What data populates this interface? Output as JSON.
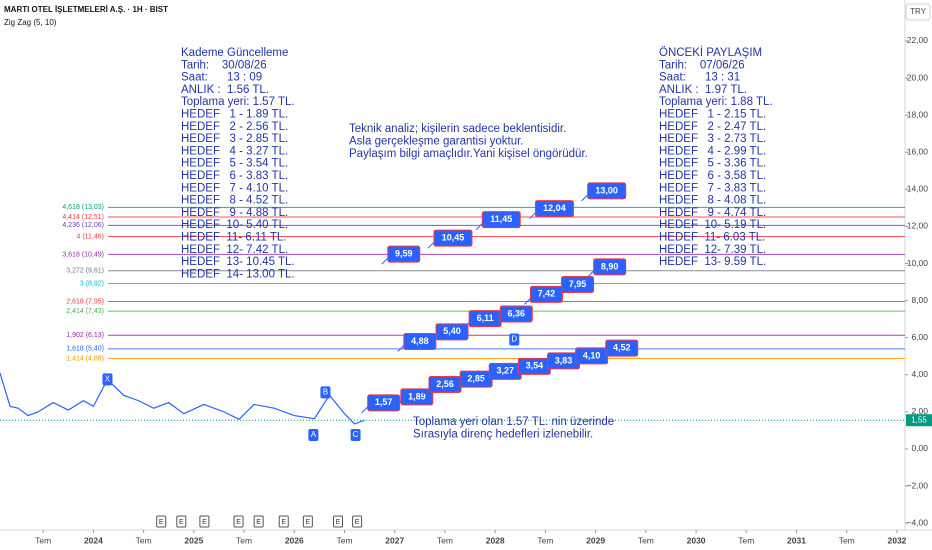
{
  "header": {
    "symbol": "MARTI OTEL İŞLETMELERİ A.Ş. · 1H · BIST",
    "indicator": "Zig Zag (5, 10)",
    "currency": "TRY"
  },
  "chart_data": {
    "type": "line",
    "xlim": [
      2023.07,
      2032.08
    ],
    "ylim": [
      -4.37,
      24.21
    ],
    "xticks": [
      {
        "value": 2023.5,
        "label": "Tem"
      },
      2024,
      {
        "value": 2024.5,
        "label": "Tem"
      },
      2025,
      {
        "value": 2025.5,
        "label": "Tem"
      },
      2026,
      {
        "value": 2026.5,
        "label": "Tem"
      },
      2027,
      {
        "value": 2027.5,
        "label": "Tem"
      },
      2028,
      {
        "value": 2028.5,
        "label": "Tem"
      },
      2029,
      {
        "value": 2029.5,
        "label": "Tem"
      },
      2030,
      {
        "value": 2030.5,
        "label": "Tem"
      },
      2031,
      {
        "value": 2031.5,
        "label": "Tem"
      },
      2032
    ],
    "yticks": [
      {
        "value": -4,
        "label": "−4,00"
      },
      {
        "value": -2,
        "label": "−2,00"
      },
      {
        "value": 0,
        "label": "0,00"
      },
      {
        "value": 2,
        "label": "2,00"
      },
      {
        "value": 4,
        "label": "4,00"
      },
      {
        "value": 6,
        "label": "6,00"
      },
      {
        "value": 8,
        "label": "8,00"
      },
      {
        "value": 10,
        "label": "10,00"
      },
      {
        "value": 12,
        "label": "12,00"
      },
      {
        "value": 14,
        "label": "14,00"
      },
      {
        "value": 16,
        "label": "16,00"
      },
      {
        "value": 18,
        "label": "18,00"
      },
      {
        "value": 20,
        "label": "20,00"
      },
      {
        "value": 22,
        "label": "22,00"
      }
    ],
    "series": [
      {
        "color": "#2962ff",
        "x": [
          2023.07,
          2023.17,
          2023.25,
          2023.35,
          2023.45,
          2023.6,
          2023.75,
          2023.9,
          2024.0,
          2024.14,
          2024.3,
          2024.45,
          2024.6,
          2024.75,
          2024.9,
          2025.1,
          2025.3,
          2025.45,
          2025.6,
          2025.8,
          2026.0,
          2026.2,
          2026.35,
          2026.5,
          2026.6,
          2026.7
        ],
        "values": [
          4.1,
          2.3,
          2.2,
          1.8,
          2.0,
          2.5,
          2.1,
          2.6,
          2.3,
          3.75,
          2.9,
          2.6,
          2.2,
          2.5,
          1.9,
          2.4,
          2.0,
          1.6,
          2.4,
          2.2,
          1.8,
          1.63,
          2.9,
          1.9,
          1.35,
          1.55
        ]
      }
    ],
    "fib_levels": [
      {
        "value": 13.03,
        "label": "4,618 (13,03)",
        "color": "#089981"
      },
      {
        "value": 12.51,
        "label": "4,414 (12,51)",
        "color": "#f23645"
      },
      {
        "value": 12.06,
        "label": "4,236 (12,06)",
        "color": "#673ab7"
      },
      {
        "value": 11.46,
        "label": "4 (11,46)",
        "color": "#f23645"
      },
      {
        "value": 10.49,
        "label": "3,618 (10,49)",
        "color": "#9c27b0"
      },
      {
        "value": 9.61,
        "label": "3,272 (9,61)",
        "color": "#787b86"
      },
      {
        "value": 8.92,
        "label": "3 (8,92)",
        "color": "#00bcd4"
      },
      {
        "value": 7.95,
        "label": "2,618 (7,95)",
        "color": "#f23645"
      },
      {
        "value": 7.43,
        "label": "2,414 (7,43)",
        "color": "#4caf50"
      },
      {
        "value": 6.13,
        "label": "1,902 (6,13)",
        "color": "#9c27b0"
      },
      {
        "value": 5.4,
        "label": "1,618 (5,40)",
        "color": "#2962ff"
      },
      {
        "value": 4.88,
        "label": "1,414 (4,88)",
        "color": "#ff9800"
      }
    ],
    "targets": [
      {
        "x": 2026.89,
        "value": 1.57,
        "label": "1,57"
      },
      {
        "x": 2027.22,
        "value": 1.89,
        "label": "1,89"
      },
      {
        "x": 2027.5,
        "value": 2.56,
        "label": "2,56"
      },
      {
        "x": 2027.81,
        "value": 2.85,
        "label": "2,85"
      },
      {
        "x": 2028.1,
        "value": 3.27,
        "label": "3,27"
      },
      {
        "x": 2028.39,
        "value": 3.54,
        "label": "3,54"
      },
      {
        "x": 2028.68,
        "value": 3.83,
        "label": "3,83"
      },
      {
        "x": 2028.96,
        "value": 4.1,
        "label": "4,10"
      },
      {
        "x": 2029.26,
        "value": 4.52,
        "label": "4,52"
      },
      {
        "x": 2027.25,
        "value": 4.88,
        "label": "4,88"
      },
      {
        "x": 2027.57,
        "value": 5.4,
        "label": "5,40"
      },
      {
        "x": 2027.9,
        "value": 6.11,
        "label": "6,11"
      },
      {
        "x": 2028.21,
        "value": 6.36,
        "label": "6,36"
      },
      {
        "x": 2028.51,
        "value": 7.42,
        "label": "7,42"
      },
      {
        "x": 2028.82,
        "value": 7.95,
        "label": "7,95"
      },
      {
        "x": 2029.14,
        "value": 8.9,
        "label": "8,90"
      },
      {
        "x": 2027.09,
        "value": 9.59,
        "label": "9,59"
      },
      {
        "x": 2027.58,
        "value": 10.45,
        "label": "10,45"
      },
      {
        "x": 2028.06,
        "value": 11.45,
        "label": "11,45"
      },
      {
        "x": 2028.59,
        "value": 12.04,
        "label": "12,04"
      },
      {
        "x": 2029.11,
        "value": 13.0,
        "label": "13,00"
      }
    ],
    "pattern_points": [
      {
        "x": 2024.14,
        "value": 3.75,
        "label": "X"
      },
      {
        "x": 2026.19,
        "value": 0.75,
        "label": "A"
      },
      {
        "x": 2026.31,
        "value": 3.05,
        "label": "B"
      },
      {
        "x": 2026.61,
        "value": 0.75,
        "label": "C"
      },
      {
        "x": 2028.19,
        "value": 5.9,
        "label": "D"
      }
    ],
    "events": [
      {
        "x": 2024.67,
        "label": "E"
      },
      {
        "x": 2024.87,
        "label": "E"
      },
      {
        "x": 2025.1,
        "label": "E"
      },
      {
        "x": 2025.44,
        "label": "E"
      },
      {
        "x": 2025.64,
        "label": "E"
      },
      {
        "x": 2025.89,
        "label": "E"
      },
      {
        "x": 2026.13,
        "label": "E"
      },
      {
        "x": 2026.43,
        "label": "E"
      },
      {
        "x": 2026.62,
        "label": "E"
      }
    ],
    "last_price": {
      "value": 1.55,
      "label": "1,55"
    },
    "notes": {
      "left": [
        "Kademe Güncelleme",
        "Tarih:    30/08/26",
        "Saat:      13 : 09",
        "ANLIK :  1.56 TL.",
        "Toplama yeri: 1.57 TL.",
        "HEDEF   1 - 1.89 TL.",
        "HEDEF   2 - 2.56 TL.",
        "HEDEF   3 - 2.85 TL.",
        "HEDEF   4 - 3.27 TL.",
        "HEDEF   5 - 3.54 TL.",
        "HEDEF   6 - 3.83 TL.",
        "HEDEF   7 - 4.10 TL.",
        "HEDEF   8 - 4.52 TL.",
        "HEDEF   9 - 4.88 TL.",
        "HEDEF  10- 5.40 TL.",
        "HEDEF  11- 6.11 TL.",
        "HEDEF  12- 7.42 TL.",
        "HEDEF  13- 10.45 TL.",
        "HEDEF  14- 13.00 TL."
      ],
      "right": [
        "ÖNCEKİ PAYLAŞIM",
        "Tarih:    07/06/26",
        "Saat:      13 : 31",
        "ANLIK :  1.97 TL.",
        "Toplama yeri: 1.88 TL.",
        "HEDEF   1 - 2.15 TL.",
        "HEDEF   2 - 2.47 TL.",
        "HEDEF   3 - 2.73 TL.",
        "HEDEF   4 - 2.99 TL.",
        "HEDEF   5 - 3.36 TL.",
        "HEDEF   6 - 3.58 TL.",
        "HEDEF   7 - 3.83 TL.",
        "HEDEF   8 - 4.08 TL.",
        "HEDEF   9 - 4.74 TL.",
        "HEDEF  10- 5.19 TL.",
        "HEDEF  11- 6.03 TL.",
        "HEDEF  12- 7.39 TL.",
        "HEDEF  13- 9.59 TL."
      ],
      "middle": [
        "Teknik analiz; kişilerin sadece beklentisidir.",
        "Asla gerçekleşme garantisi yoktur.",
        "Paylaşım bilgi amaçlıdır.Yani kişisel öngörüdür."
      ],
      "bottom": [
        "Toplama yeri olan 1.57 TL. nin üzerinde",
        "Sırasıyla direnç hedefleri izlenebilir."
      ]
    }
  }
}
